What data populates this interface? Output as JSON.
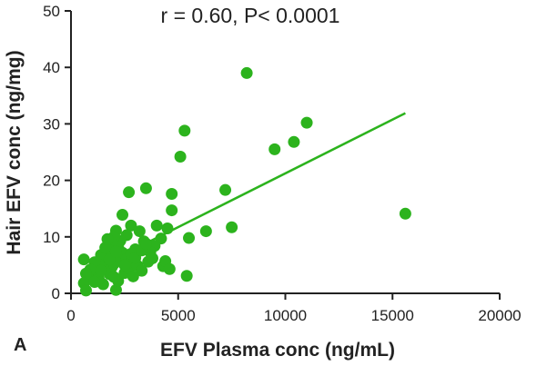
{
  "chart_data": {
    "type": "scatter",
    "panel_label": "A",
    "annotation": "r = 0.60, P< 0.0001",
    "xlabel": "EFV Plasma conc (ng/mL)",
    "ylabel": "Hair EFV conc (ng/mg)",
    "xlim": [
      0,
      20000
    ],
    "ylim": [
      0,
      50
    ],
    "xticks": [
      0,
      5000,
      10000,
      15000,
      20000
    ],
    "xtick_labels": [
      "0",
      "5000",
      "10000",
      "15000",
      "20000"
    ],
    "yticks": [
      0,
      10,
      20,
      30,
      40,
      50
    ],
    "ytick_labels": [
      "0",
      "10",
      "20",
      "30",
      "40",
      "50"
    ],
    "grid": false,
    "color": "#2cb31d",
    "trendline": {
      "x": [
        2100,
        15600
      ],
      "y": [
        6.2,
        31.9
      ]
    },
    "points": [
      {
        "x": 8200,
        "y": 39.0
      },
      {
        "x": 5300,
        "y": 28.8
      },
      {
        "x": 11000,
        "y": 30.2
      },
      {
        "x": 10400,
        "y": 26.8
      },
      {
        "x": 9500,
        "y": 25.5
      },
      {
        "x": 5100,
        "y": 24.2
      },
      {
        "x": 15600,
        "y": 14.1
      },
      {
        "x": 7200,
        "y": 18.3
      },
      {
        "x": 7500,
        "y": 11.7
      },
      {
        "x": 6300,
        "y": 11.0
      },
      {
        "x": 5500,
        "y": 9.8
      },
      {
        "x": 5400,
        "y": 3.1
      },
      {
        "x": 4700,
        "y": 17.6
      },
      {
        "x": 4700,
        "y": 14.7
      },
      {
        "x": 3500,
        "y": 18.6
      },
      {
        "x": 2700,
        "y": 17.9
      },
      {
        "x": 2400,
        "y": 13.9
      },
      {
        "x": 4500,
        "y": 11.5
      },
      {
        "x": 4000,
        "y": 12.0
      },
      {
        "x": 4200,
        "y": 9.7
      },
      {
        "x": 3900,
        "y": 8.4
      },
      {
        "x": 3200,
        "y": 11.0
      },
      {
        "x": 3400,
        "y": 9.2
      },
      {
        "x": 3700,
        "y": 7.3
      },
      {
        "x": 3000,
        "y": 7.8
      },
      {
        "x": 2800,
        "y": 12.0
      },
      {
        "x": 2600,
        "y": 10.3
      },
      {
        "x": 2300,
        "y": 9.3
      },
      {
        "x": 2200,
        "y": 8.2
      },
      {
        "x": 2100,
        "y": 11.1
      },
      {
        "x": 2000,
        "y": 10.0
      },
      {
        "x": 1900,
        "y": 9.0
      },
      {
        "x": 1800,
        "y": 7.6
      },
      {
        "x": 1700,
        "y": 6.5
      },
      {
        "x": 1600,
        "y": 5.9
      },
      {
        "x": 1500,
        "y": 4.6
      },
      {
        "x": 1400,
        "y": 6.8
      },
      {
        "x": 1300,
        "y": 5.1
      },
      {
        "x": 1200,
        "y": 3.8
      },
      {
        "x": 1100,
        "y": 5.5
      },
      {
        "x": 1000,
        "y": 3.1
      },
      {
        "x": 900,
        "y": 4.2
      },
      {
        "x": 800,
        "y": 2.6
      },
      {
        "x": 700,
        "y": 3.5
      },
      {
        "x": 600,
        "y": 1.8
      },
      {
        "x": 700,
        "y": 0.5
      },
      {
        "x": 600,
        "y": 6.0
      },
      {
        "x": 2100,
        "y": 0.6
      },
      {
        "x": 2200,
        "y": 2.2
      },
      {
        "x": 2500,
        "y": 3.6
      },
      {
        "x": 2700,
        "y": 4.4
      },
      {
        "x": 2900,
        "y": 5.3
      },
      {
        "x": 3100,
        "y": 4.9
      },
      {
        "x": 3300,
        "y": 4.0
      },
      {
        "x": 3600,
        "y": 5.6
      },
      {
        "x": 3800,
        "y": 6.2
      },
      {
        "x": 4300,
        "y": 4.8
      },
      {
        "x": 4400,
        "y": 5.7
      },
      {
        "x": 4600,
        "y": 4.3
      },
      {
        "x": 1500,
        "y": 1.6
      },
      {
        "x": 1300,
        "y": 2.5
      },
      {
        "x": 1800,
        "y": 3.4
      },
      {
        "x": 1900,
        "y": 4.6
      },
      {
        "x": 2000,
        "y": 5.2
      },
      {
        "x": 2300,
        "y": 6.5
      },
      {
        "x": 2400,
        "y": 7.2
      },
      {
        "x": 2600,
        "y": 6.1
      },
      {
        "x": 2800,
        "y": 7.0
      },
      {
        "x": 3000,
        "y": 6.3
      },
      {
        "x": 3300,
        "y": 7.6
      },
      {
        "x": 3500,
        "y": 8.8
      },
      {
        "x": 1600,
        "y": 8.1
      },
      {
        "x": 1700,
        "y": 9.6
      },
      {
        "x": 1400,
        "y": 4.0
      },
      {
        "x": 1100,
        "y": 2.0
      },
      {
        "x": 2000,
        "y": 2.9
      },
      {
        "x": 2500,
        "y": 5.0
      },
      {
        "x": 2900,
        "y": 3.0
      },
      {
        "x": 1800,
        "y": 6.0
      },
      {
        "x": 2100,
        "y": 7.4
      }
    ]
  }
}
